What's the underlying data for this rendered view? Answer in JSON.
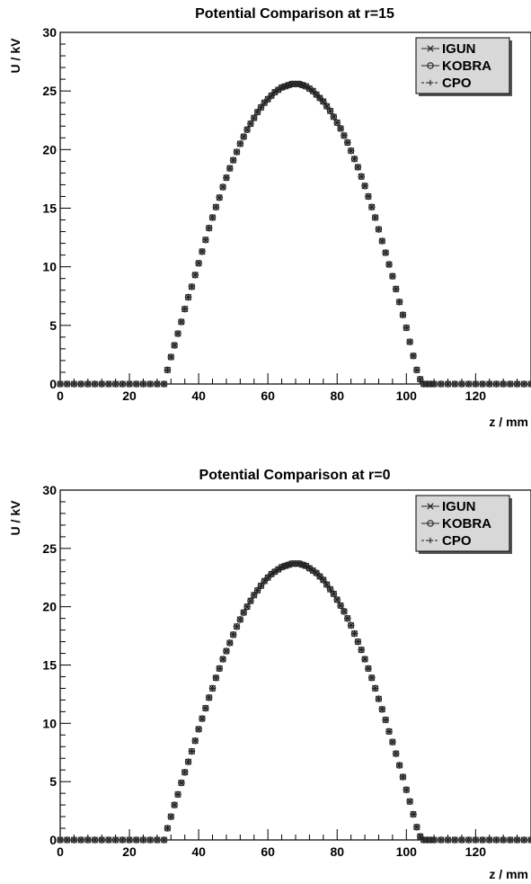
{
  "colors": {
    "marker": "#222222",
    "axis": "#000000",
    "legend_bg": "#d8d8d8"
  },
  "chart_data": [
    {
      "type": "scatter",
      "title": "Potential Comparison at r=15",
      "xlabel": "z / mm",
      "ylabel": "U / kV",
      "xlim": [
        0,
        136
      ],
      "ylim": [
        0,
        30
      ],
      "xticks": [
        "0",
        "20",
        "40",
        "60",
        "80",
        "100",
        "120"
      ],
      "yticks": [
        "0",
        "5",
        "10",
        "15",
        "20",
        "25",
        "30"
      ],
      "grid": false,
      "legend_position": "top-right",
      "series": [
        {
          "name": "IGUN",
          "marker": "x"
        },
        {
          "name": "KOBRA",
          "marker": "circle"
        },
        {
          "name": "CPO",
          "marker": "plus"
        }
      ],
      "x": [
        0,
        2,
        4,
        6,
        8,
        10,
        12,
        14,
        16,
        18,
        20,
        22,
        24,
        26,
        28,
        30,
        31,
        32,
        33,
        34,
        35,
        36,
        37,
        38,
        39,
        40,
        41,
        42,
        43,
        44,
        45,
        46,
        47,
        48,
        49,
        50,
        51,
        52,
        53,
        54,
        55,
        56,
        57,
        58,
        59,
        60,
        61,
        62,
        63,
        64,
        65,
        66,
        67,
        68,
        69,
        70,
        71,
        72,
        73,
        74,
        75,
        76,
        77,
        78,
        79,
        80,
        81,
        82,
        83,
        84,
        85,
        86,
        87,
        88,
        89,
        90,
        91,
        92,
        93,
        94,
        95,
        96,
        97,
        98,
        99,
        100,
        101,
        102,
        103,
        104,
        105,
        106,
        107,
        108,
        110,
        112,
        114,
        116,
        118,
        120,
        122,
        124,
        126,
        128,
        130,
        132,
        134,
        136
      ],
      "values": [
        0,
        0,
        0,
        0,
        0,
        0,
        0,
        0,
        0,
        0,
        0,
        0,
        0,
        0,
        0,
        0,
        1.2,
        2.3,
        3.3,
        4.3,
        5.3,
        6.4,
        7.4,
        8.3,
        9.3,
        10.3,
        11.3,
        12.3,
        13.3,
        14.2,
        15.1,
        15.9,
        16.8,
        17.6,
        18.4,
        19.1,
        19.8,
        20.5,
        21.1,
        21.7,
        22.2,
        22.7,
        23.2,
        23.6,
        24.0,
        24.3,
        24.6,
        24.9,
        25.1,
        25.3,
        25.4,
        25.5,
        25.6,
        25.6,
        25.6,
        25.5,
        25.4,
        25.2,
        25.0,
        24.7,
        24.4,
        24.1,
        23.7,
        23.3,
        22.8,
        22.3,
        21.8,
        21.2,
        20.6,
        19.9,
        19.2,
        18.5,
        17.7,
        16.9,
        16.0,
        15.1,
        14.2,
        13.2,
        12.2,
        11.2,
        10.2,
        9.2,
        8.1,
        7.0,
        5.9,
        4.8,
        3.6,
        2.4,
        1.2,
        0.4,
        0,
        0,
        0,
        0,
        0,
        0,
        0,
        0,
        0,
        0,
        0,
        0,
        0,
        0,
        0,
        0,
        0,
        0
      ]
    },
    {
      "type": "scatter",
      "title": "Potential Comparison at r=0",
      "xlabel": "z / mm",
      "ylabel": "U / kV",
      "xlim": [
        0,
        136
      ],
      "ylim": [
        0,
        30
      ],
      "xticks": [
        "0",
        "20",
        "40",
        "60",
        "80",
        "100",
        "120"
      ],
      "yticks": [
        "0",
        "5",
        "10",
        "15",
        "20",
        "25",
        "30"
      ],
      "grid": false,
      "legend_position": "top-right",
      "series": [
        {
          "name": "IGUN",
          "marker": "x"
        },
        {
          "name": "KOBRA",
          "marker": "circle"
        },
        {
          "name": "CPO",
          "marker": "plus"
        }
      ],
      "x": [
        0,
        2,
        4,
        6,
        8,
        10,
        12,
        14,
        16,
        18,
        20,
        22,
        24,
        26,
        28,
        30,
        31,
        32,
        33,
        34,
        35,
        36,
        37,
        38,
        39,
        40,
        41,
        42,
        43,
        44,
        45,
        46,
        47,
        48,
        49,
        50,
        51,
        52,
        53,
        54,
        55,
        56,
        57,
        58,
        59,
        60,
        61,
        62,
        63,
        64,
        65,
        66,
        67,
        68,
        69,
        70,
        71,
        72,
        73,
        74,
        75,
        76,
        77,
        78,
        79,
        80,
        81,
        82,
        83,
        84,
        85,
        86,
        87,
        88,
        89,
        90,
        91,
        92,
        93,
        94,
        95,
        96,
        97,
        98,
        99,
        100,
        101,
        102,
        103,
        104,
        105,
        106,
        107,
        108,
        110,
        112,
        114,
        116,
        118,
        120,
        122,
        124,
        126,
        128,
        130,
        132,
        134,
        136
      ],
      "values": [
        0,
        0,
        0,
        0,
        0,
        0,
        0,
        0,
        0,
        0,
        0,
        0,
        0,
        0,
        0,
        0,
        1.0,
        2.0,
        3.0,
        3.9,
        4.9,
        5.8,
        6.7,
        7.6,
        8.5,
        9.5,
        10.4,
        11.3,
        12.2,
        13.0,
        13.9,
        14.7,
        15.5,
        16.2,
        16.9,
        17.6,
        18.3,
        18.9,
        19.5,
        20.0,
        20.5,
        21.0,
        21.4,
        21.8,
        22.2,
        22.5,
        22.8,
        23.0,
        23.2,
        23.4,
        23.5,
        23.6,
        23.7,
        23.7,
        23.7,
        23.6,
        23.5,
        23.3,
        23.1,
        22.9,
        22.6,
        22.3,
        21.9,
        21.5,
        21.1,
        20.6,
        20.1,
        19.6,
        19.0,
        18.4,
        17.7,
        17.0,
        16.3,
        15.5,
        14.7,
        13.9,
        13.0,
        12.1,
        11.2,
        10.3,
        9.3,
        8.4,
        7.4,
        6.4,
        5.4,
        4.3,
        3.3,
        2.2,
        1.1,
        0.3,
        0,
        0,
        0,
        0,
        0,
        0,
        0,
        0,
        0,
        0,
        0,
        0,
        0,
        0,
        0,
        0,
        0,
        0
      ]
    }
  ]
}
